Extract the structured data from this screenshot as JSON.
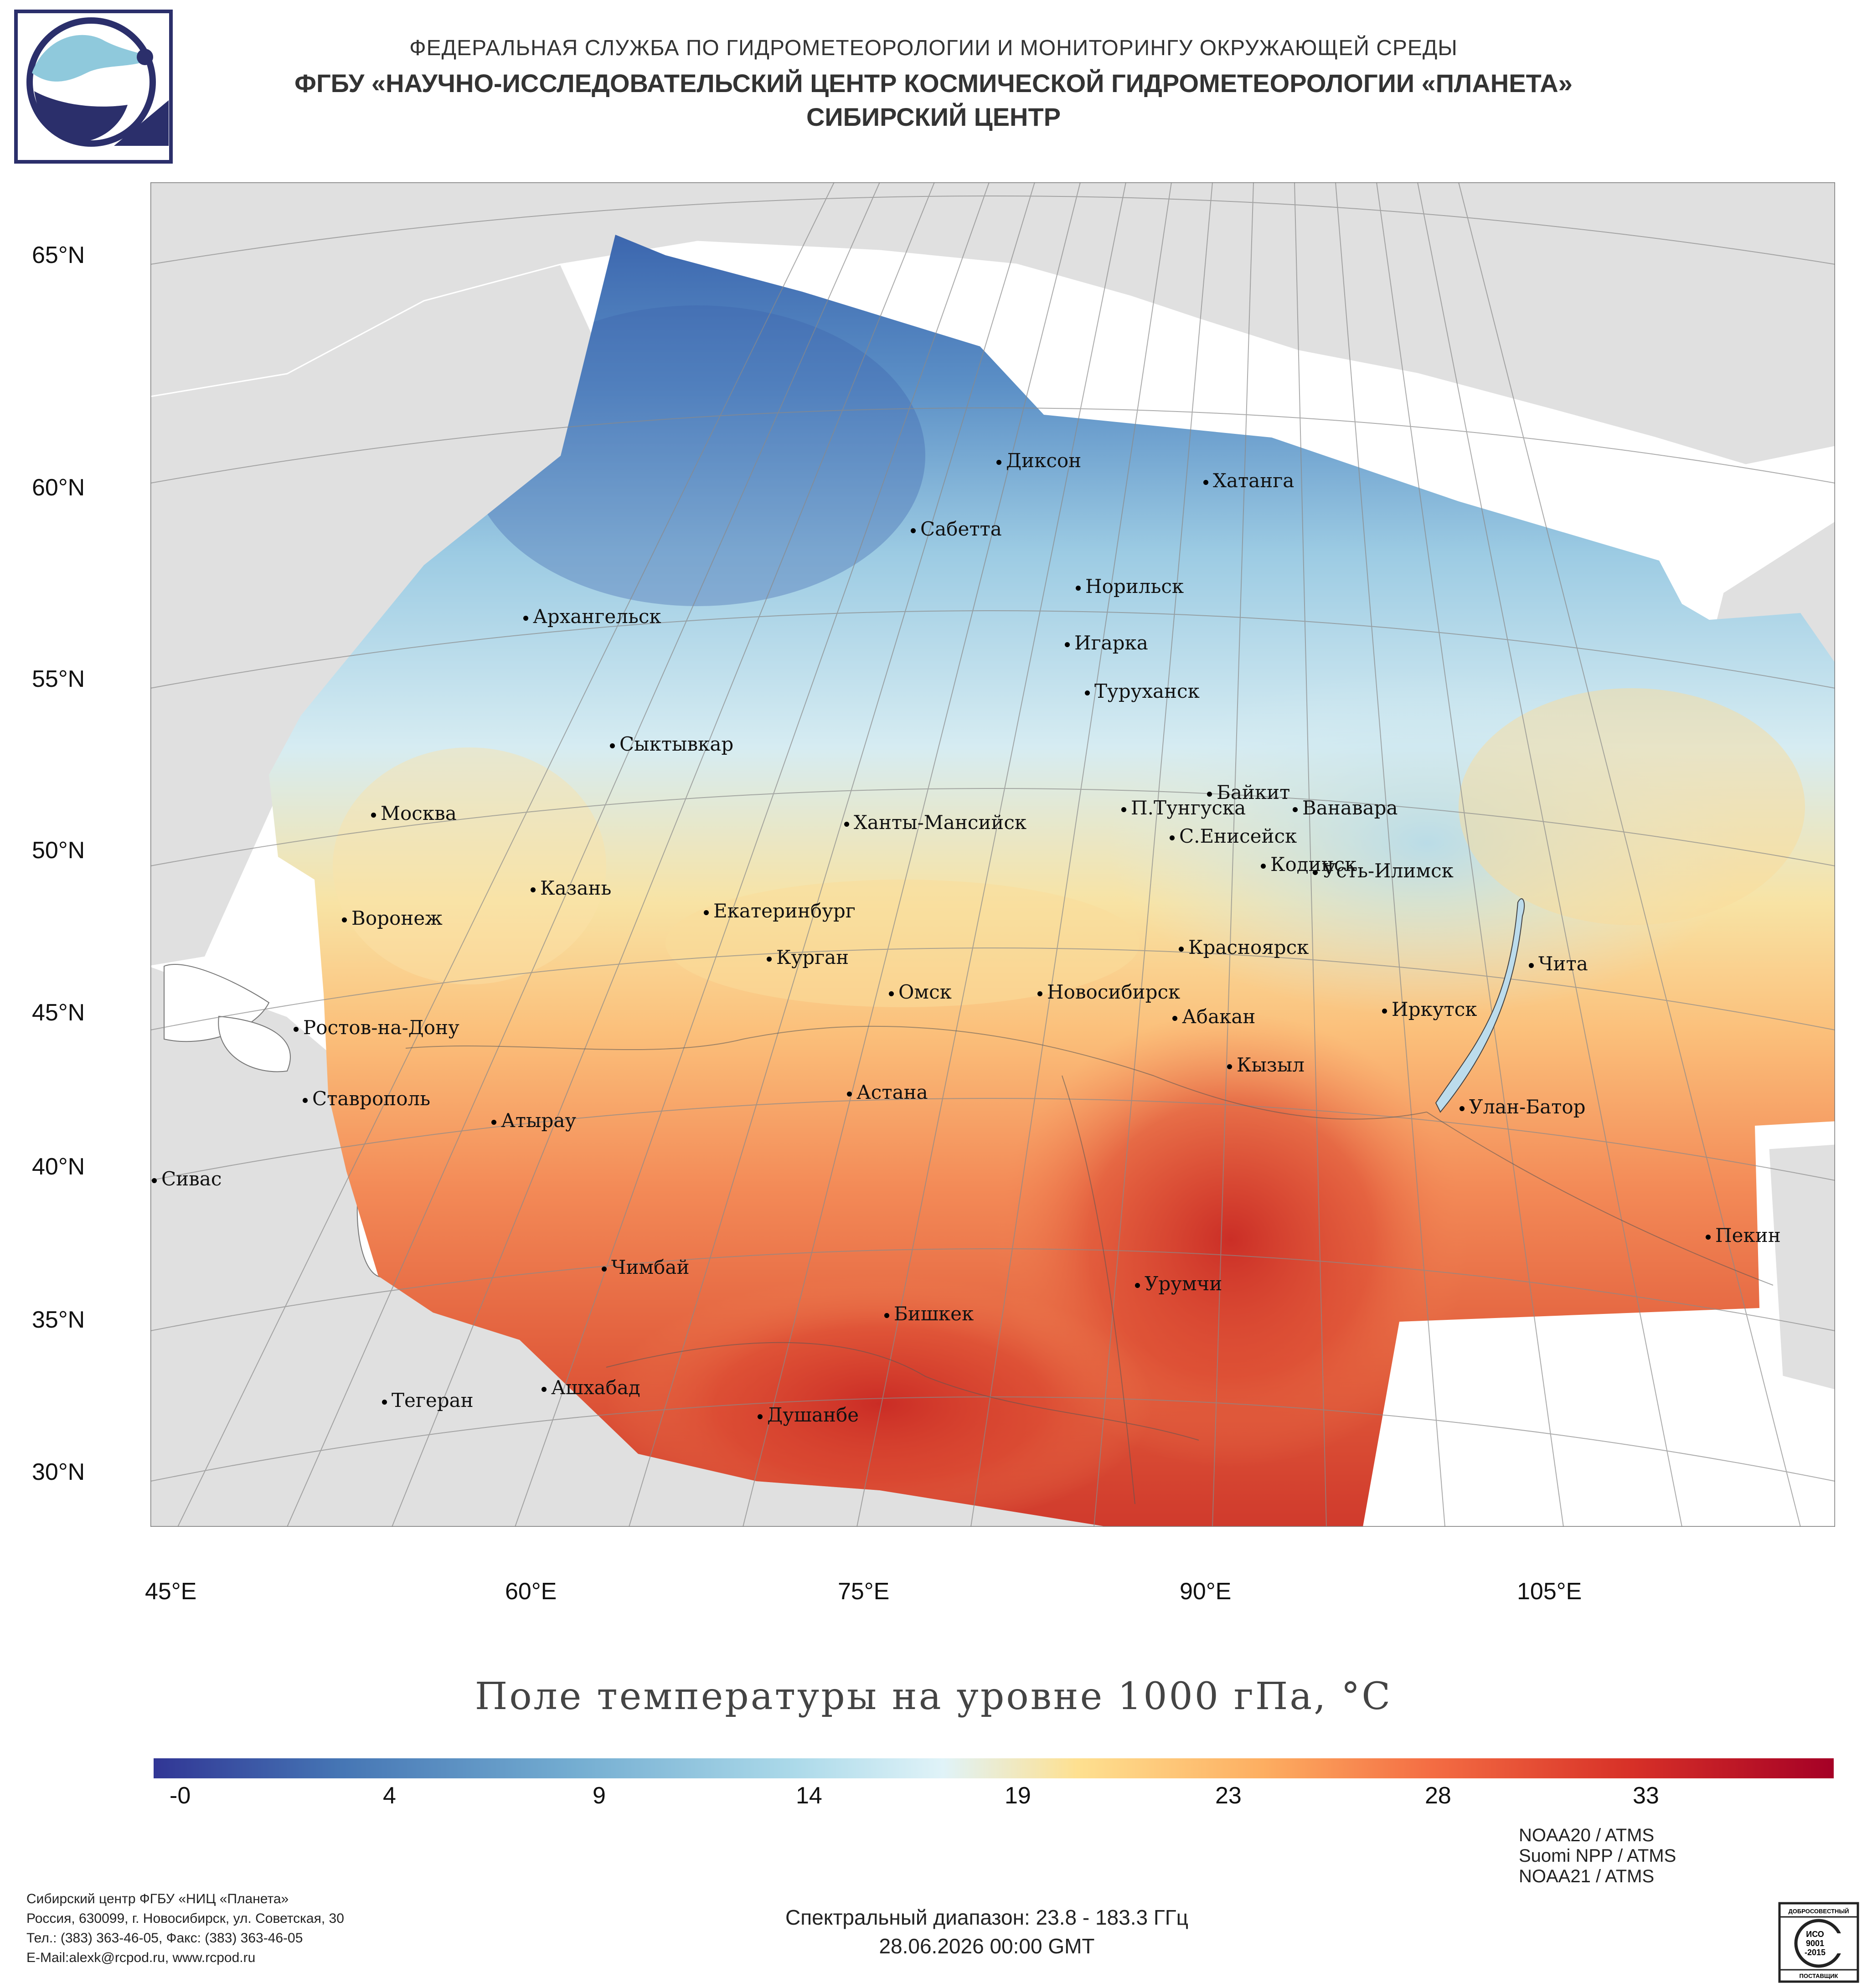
{
  "header": {
    "agency": "ФЕДЕРАЛЬНАЯ СЛУЖБА ПО ГИДРОМЕТЕОРОЛОГИИ И МОНИТОРИНГУ ОКРУЖАЮЩЕЙ СРЕДЫ",
    "center": "ФГБУ «НАУЧНО-ИССЛЕДОВАТЕЛЬСКИЙ ЦЕНТР КОСМИЧЕСКОЙ ГИДРОМЕТЕОРОЛОГИИ «ПЛАНЕТА»",
    "branch": "СИБИРСКИЙ ЦЕНТР"
  },
  "map": {
    "title": "Поле температуры на уровне 1000 гПа, °C",
    "lat_labels": [
      "65°N",
      "60°N",
      "55°N",
      "50°N",
      "45°N",
      "40°N",
      "35°N",
      "30°N"
    ],
    "lon_labels": [
      "45°E",
      "60°E",
      "75°E",
      "90°E",
      "105°E"
    ],
    "cities": [
      "Диксон",
      "Хатанга",
      "Сабетта",
      "Норильск",
      "Архангельск",
      "Игарка",
      "Туруханск",
      "Сыктывкар",
      "Байкит",
      "Москва",
      "Ханты-Мансийск",
      "П.Тунгуска",
      "Ванавара",
      "С.Енисейск",
      "Казань",
      "Кодинск",
      "Усть-Илимск",
      "Воронеж",
      "Екатеринбург",
      "Курган",
      "Красноярск",
      "Чита",
      "Омск",
      "Новосибирск",
      "Ростов-на-Дону",
      "Иркутск",
      "Абакан",
      "Кызыл",
      "Ставрополь",
      "Астана",
      "Улан-Батор",
      "Атырау",
      "Сивас",
      "Пекин",
      "Чимбай",
      "Урумчи",
      "Бишкек",
      "Ашхабад",
      "Тегеран",
      "Душанбе"
    ],
    "colors": {
      "land": "#e0e0e0",
      "ocean": "#ffffff",
      "border": "#ffffff",
      "graticule": "#888888"
    }
  },
  "colorbar": {
    "ticks": [
      "-0",
      "4",
      "9",
      "14",
      "19",
      "23",
      "28",
      "33"
    ],
    "colors": [
      "#313695",
      "#4575b4",
      "#74add1",
      "#abd9e9",
      "#e0f3f8",
      "#fee090",
      "#fdae61",
      "#f46d43",
      "#d73027",
      "#a50026"
    ]
  },
  "footer": {
    "org_lines": [
      "Сибирский центр ФГБУ «НИЦ «Планета»",
      "Россия, 630099, г. Новосибирск, ул. Советская, 30",
      "Тел.: (383) 363-46-05, Факс: (383) 363-46-05",
      "E-Mail:alexk@rcpod.ru, www.rcpod.ru"
    ],
    "sensors": [
      "NOAA20 / ATMS",
      "Suomi NPP / ATMS",
      "NOAA21 / ATMS"
    ],
    "spectral": "Спектральный диапазон: 23.8 - 183.3 ГГц",
    "datetime": "28.06.2026 00:00 GMT",
    "iso": {
      "top": "ДОБРОСОВЕСТНЫЙ",
      "mid1": "ИСО",
      "mid2": "9001",
      "mid3": "-2015",
      "bottom": "ПОСТАВЩИК"
    }
  }
}
